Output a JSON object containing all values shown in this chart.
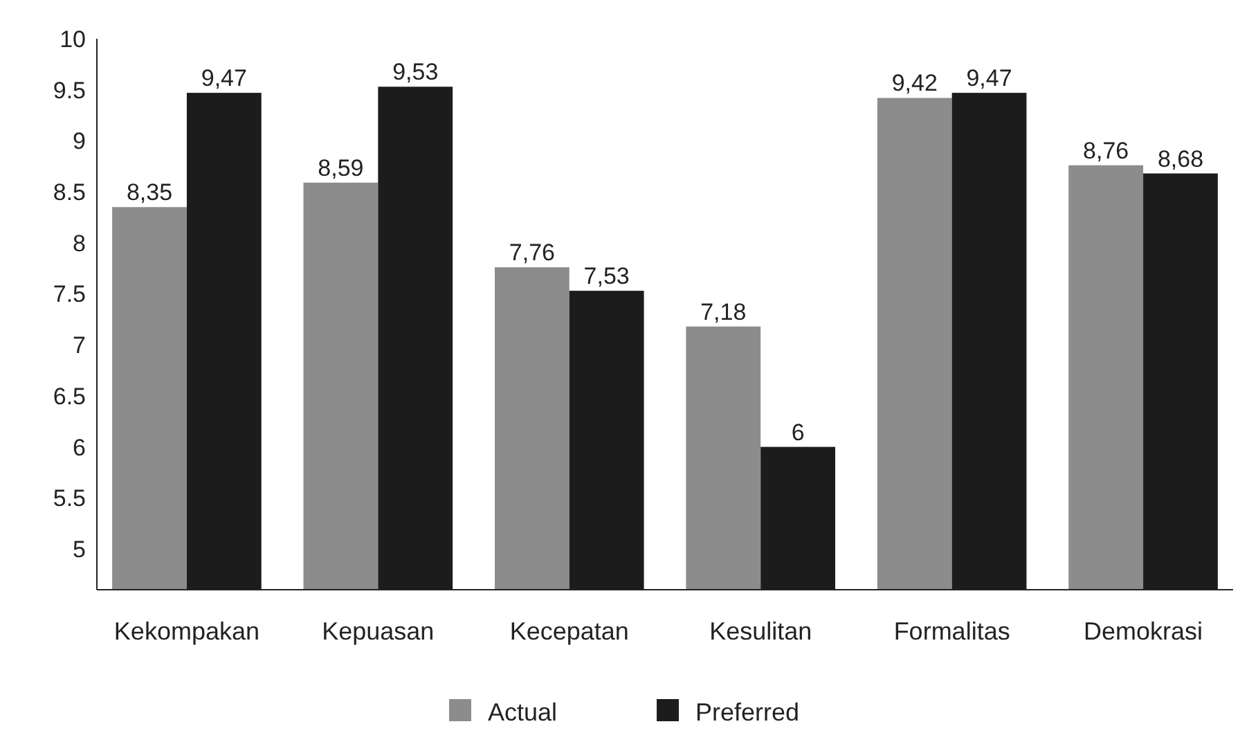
{
  "chart_data": {
    "type": "bar",
    "categories": [
      "Kekompakan",
      "Kepuasan",
      "Kecepatan",
      "Kesulitan",
      "Formalitas",
      "Demokrasi"
    ],
    "series": [
      {
        "name": "Actual",
        "color": "#8c8c8c",
        "values": [
          8.35,
          8.59,
          7.76,
          7.18,
          9.42,
          8.76
        ],
        "value_labels": [
          "8,35",
          "8,59",
          "7,76",
          "7,18",
          "9,42",
          "8,76"
        ]
      },
      {
        "name": "Preferred",
        "color": "#1c1c1c",
        "values": [
          9.47,
          9.53,
          7.53,
          6,
          9.47,
          8.68
        ],
        "value_labels": [
          "9,47",
          "9,53",
          "7,53",
          "6",
          "9,47",
          "8,68"
        ]
      }
    ],
    "ylim": [
      4.6,
      10
    ],
    "yticks": [
      5,
      5.5,
      6,
      6.5,
      7,
      7.5,
      8,
      8.5,
      9,
      9.5,
      10
    ],
    "grid": false,
    "legend": "bottom"
  }
}
